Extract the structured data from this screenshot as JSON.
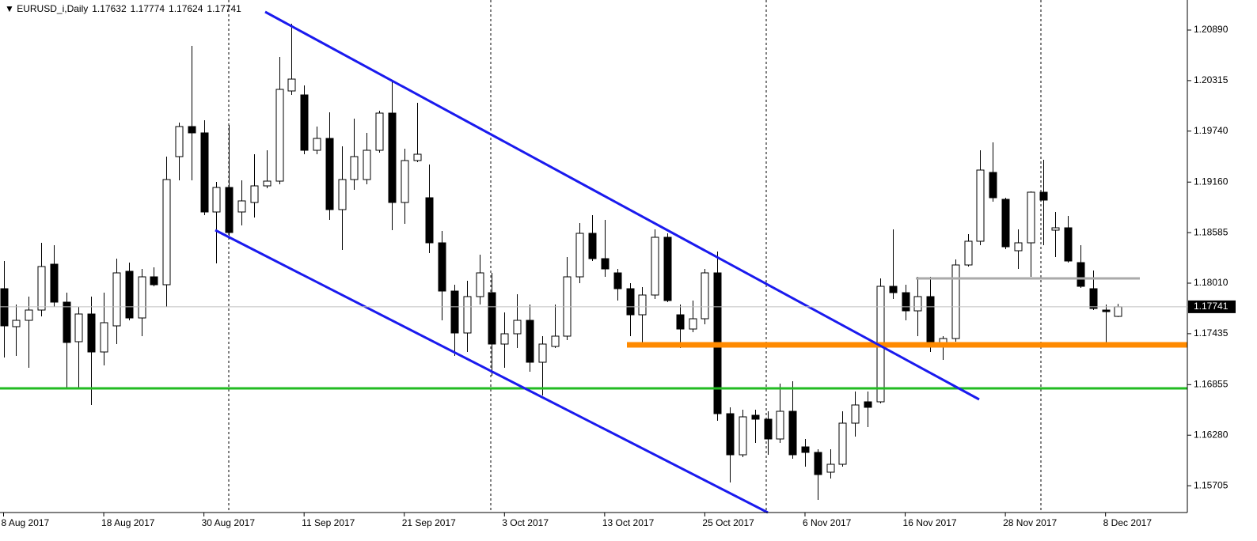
{
  "chart_data": {
    "type": "candlestick",
    "title": "EURUSD_i,Daily",
    "categories": [
      "8 Aug 2017",
      null,
      null,
      null,
      null,
      null,
      null,
      null,
      "18 Aug 2017",
      null,
      null,
      null,
      null,
      null,
      null,
      null,
      "30 Aug 2017",
      null,
      null,
      null,
      null,
      null,
      null,
      null,
      "11 Sep 2017",
      null,
      null,
      null,
      null,
      null,
      null,
      null,
      "21 Sep 2017",
      null,
      null,
      null,
      null,
      null,
      null,
      null,
      "3 Oct 2017",
      null,
      null,
      null,
      null,
      null,
      null,
      null,
      "13 Oct 2017",
      null,
      null,
      null,
      null,
      null,
      null,
      null,
      "25 Oct 2017",
      null,
      null,
      null,
      null,
      null,
      null,
      null,
      "6 Nov 2017",
      null,
      null,
      null,
      null,
      null,
      null,
      null,
      "16 Nov 2017",
      null,
      null,
      null,
      null,
      null,
      null,
      null,
      "28 Nov 2017",
      null,
      null,
      null,
      null,
      null,
      null,
      null,
      "8 Dec 2017",
      null
    ],
    "open": [
      1.17947,
      1.17515,
      1.17587,
      1.17704,
      1.18226,
      1.17794,
      1.17344,
      1.17659,
      1.17227,
      1.17524,
      1.18145,
      1.17614,
      1.18082,
      1.17992,
      1.1945,
      1.19792,
      1.1972,
      1.1882,
      1.19099,
      1.1882,
      1.18928,
      1.19117,
      1.19171,
      1.20197,
      1.20152,
      1.19522,
      1.19657,
      1.18847,
      1.19189,
      1.19189,
      1.19522,
      1.19945,
      1.18928,
      1.19405,
      1.18982,
      1.18469,
      1.1792,
      1.17443,
      1.17857,
      1.17902,
      1.17317,
      1.17434,
      1.17587,
      1.1711,
      1.1729,
      1.17407,
      1.18082,
      1.18577,
      1.18289,
      1.18127,
      1.17947,
      1.1765,
      1.17875,
      1.18532,
      1.1765,
      1.17488,
      1.17605,
      1.18127,
      1.16525,
      1.16057,
      1.16507,
      1.16462,
      1.16237,
      1.16552,
      1.16147,
      1.16084,
      1.15859,
      1.15949,
      1.16417,
      1.1666,
      1.1666,
      1.17974,
      1.17902,
      1.17695,
      1.17857,
      1.17317,
      1.1738,
      1.18217,
      1.18487,
      1.1927,
      1.18964,
      1.18379,
      1.18469,
      1.19045,
      1.18613,
      1.1864,
      1.18244,
      1.17947,
      1.17704,
      1.17632
    ],
    "high": [
      1.18262,
      1.17767,
      1.17857,
      1.18469,
      1.18442,
      1.17902,
      1.1774,
      1.17857,
      1.17902,
      1.18289,
      1.18244,
      1.18172,
      1.1819,
      1.1945,
      1.19837,
      1.2071,
      1.19864,
      1.19162,
      1.1981,
      1.1918,
      1.19477,
      1.19522,
      1.20584,
      1.20962,
      1.2026,
      1.19792,
      1.19954,
      1.19567,
      1.19882,
      1.1972,
      1.19972,
      1.20305,
      1.1954,
      1.20062,
      1.1936,
      1.18604,
      1.17992,
      1.18037,
      1.18334,
      1.18127,
      1.17677,
      1.17884,
      1.17767,
      1.17407,
      1.17767,
      1.18307,
      1.18694,
      1.18784,
      1.1873,
      1.18172,
      1.1801,
      1.17965,
      1.18622,
      1.18577,
      1.17767,
      1.17812,
      1.18172,
      1.1837,
      1.16597,
      1.1657,
      1.1657,
      1.16552,
      1.16867,
      1.16894,
      1.16237,
      1.1612,
      1.1612,
      1.16552,
      1.16777,
      1.16777,
      1.18064,
      1.18622,
      1.17992,
      1.18082,
      1.18082,
      1.17407,
      1.1828,
      1.18568,
      1.19522,
      1.19612,
      1.18982,
      1.18622,
      1.19054,
      1.19414,
      1.1882,
      1.18775,
      1.18442,
      1.18154,
      1.17767,
      1.17774
    ],
    "low": [
      1.17164,
      1.17182,
      1.17047,
      1.17632,
      1.1774,
      1.16822,
      1.16822,
      1.16624,
      1.17074,
      1.17317,
      1.17587,
      1.17407,
      1.17974,
      1.1774,
      1.1918,
      1.1918,
      1.18784,
      1.18235,
      1.1855,
      1.18667,
      1.18757,
      1.1909,
      1.19135,
      1.20152,
      1.19477,
      1.19477,
      1.1873,
      1.18388,
      1.19072,
      1.19135,
      1.19495,
      1.18613,
      1.18685,
      1.19387,
      1.18352,
      1.17587,
      1.17182,
      1.17227,
      1.17767,
      1.16957,
      1.17047,
      1.17272,
      1.17002,
      1.16732,
      1.17272,
      1.17362,
      1.1801,
      1.18262,
      1.18082,
      1.17812,
      1.17407,
      1.1729,
      1.1783,
      1.17794,
      1.17272,
      1.17452,
      1.17542,
      1.16444,
      1.15742,
      1.1603,
      1.16192,
      1.16057,
      1.16192,
      1.16012,
      1.15922,
      1.15544,
      1.15787,
      1.15922,
      1.16264,
      1.16372,
      1.16642,
      1.1783,
      1.17587,
      1.17407,
      1.17227,
      1.17137,
      1.17344,
      1.18199,
      1.18442,
      1.18937,
      1.18397,
      1.18172,
      1.18082,
      1.18442,
      1.18307,
      1.18244,
      1.17956,
      1.17704,
      1.17308,
      1.17624
    ],
    "close": [
      1.17524,
      1.17587,
      1.17704,
      1.18199,
      1.17794,
      1.17335,
      1.17659,
      1.17227,
      1.1756,
      1.18127,
      1.17614,
      1.18082,
      1.17992,
      1.19189,
      1.19792,
      1.1972,
      1.1882,
      1.19099,
      1.18586,
      1.18946,
      1.19117,
      1.19171,
      1.20215,
      1.20332,
      1.19522,
      1.19657,
      1.18847,
      1.19189,
      1.1945,
      1.19522,
      1.19945,
      1.18928,
      1.19405,
      1.19477,
      1.18469,
      1.1792,
      1.17443,
      1.17857,
      1.18127,
      1.17317,
      1.17434,
      1.17587,
      1.1711,
      1.17317,
      1.17407,
      1.18082,
      1.18577,
      1.18289,
      1.18172,
      1.17947,
      1.1765,
      1.17875,
      1.18532,
      1.17812,
      1.17488,
      1.17605,
      1.18127,
      1.16525,
      1.16057,
      1.16489,
      1.16462,
      1.16237,
      1.16552,
      1.16057,
      1.16084,
      1.15832,
      1.15949,
      1.16417,
      1.16624,
      1.16597,
      1.17974,
      1.17902,
      1.17695,
      1.17857,
      1.17344,
      1.1738,
      1.18217,
      1.18487,
      1.19297,
      1.18982,
      1.18424,
      1.18469,
      1.19045,
      1.18955,
      1.1864,
      1.18262,
      1.17974,
      1.17722,
      1.17686,
      1.17741
    ],
    "up_color": "#ffffff",
    "down_color": "#000000",
    "ylim": [
      1.154,
      1.21232
    ],
    "yticks": [
      {
        "value": 1.2089,
        "label": "1.20890"
      },
      1.20315,
      {
        "value": 1.1974,
        "label": "1.19740"
      },
      {
        "value": 1.1916,
        "label": "1.19160"
      },
      1.18585,
      {
        "value": 1.1801,
        "label": "1.18010"
      },
      1.17435,
      1.16855,
      {
        "value": 1.1628,
        "label": "1.16280"
      },
      1.15705
    ]
  }
}
